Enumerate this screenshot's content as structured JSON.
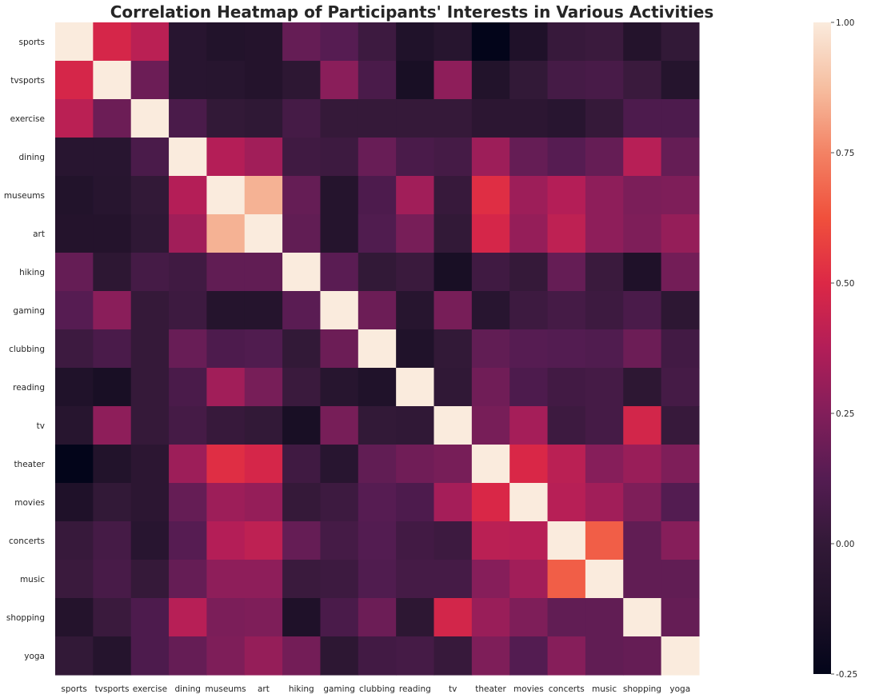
{
  "chart_data": {
    "type": "heatmap",
    "title": "Correlation Heatmap of Participants' Interests in Various Activities",
    "xlabel": "",
    "ylabel": "",
    "colormap": "rocket",
    "vmin": -0.25,
    "vmax": 1.0,
    "colorbar_ticks": [
      "-0.25",
      "0.00",
      "0.25",
      "0.50",
      "0.75",
      "1.00"
    ],
    "colorbar_tick_values": [
      -0.25,
      0.0,
      0.25,
      0.5,
      0.75,
      1.0
    ],
    "row_labels": [
      "sports",
      "tvsports",
      "exercise",
      "dining",
      "museums",
      "art",
      "hiking",
      "gaming",
      "clubbing",
      "reading",
      "tv",
      "theater",
      "movies",
      "concerts",
      "music",
      "shopping",
      "yoga"
    ],
    "col_labels": [
      "sports",
      "tvsports",
      "exercise",
      "dining",
      "museums",
      "art",
      "hiking",
      "gaming",
      "clubbing",
      "reading",
      "tv",
      "theater",
      "movies",
      "concerts",
      "music",
      "shopping",
      "yoga"
    ],
    "values": [
      [
        1.0,
        0.48,
        0.4,
        -0.06,
        -0.1,
        -0.09,
        0.17,
        0.13,
        0.04,
        -0.11,
        -0.07,
        -0.25,
        -0.12,
        0.02,
        0.03,
        -0.09,
        0.0
      ],
      [
        0.48,
        1.0,
        0.19,
        -0.06,
        -0.07,
        -0.09,
        -0.03,
        0.27,
        0.09,
        -0.15,
        0.28,
        -0.1,
        0.0,
        0.07,
        0.08,
        0.03,
        -0.08
      ],
      [
        0.4,
        0.19,
        1.0,
        0.09,
        0.0,
        -0.02,
        0.07,
        0.01,
        0.01,
        0.01,
        0.01,
        -0.04,
        -0.04,
        -0.06,
        0.01,
        0.1,
        0.1
      ],
      [
        -0.06,
        -0.06,
        0.09,
        1.0,
        0.38,
        0.33,
        0.05,
        0.04,
        0.18,
        0.09,
        0.07,
        0.32,
        0.17,
        0.13,
        0.17,
        0.39,
        0.17
      ],
      [
        -0.1,
        -0.07,
        0.0,
        0.38,
        1.0,
        0.85,
        0.17,
        -0.08,
        0.1,
        0.33,
        0.02,
        0.52,
        0.32,
        0.38,
        0.28,
        0.23,
        0.24
      ],
      [
        -0.09,
        -0.09,
        -0.02,
        0.33,
        0.85,
        1.0,
        0.16,
        -0.08,
        0.11,
        0.22,
        0.0,
        0.48,
        0.3,
        0.41,
        0.28,
        0.24,
        0.3
      ],
      [
        0.17,
        -0.03,
        0.07,
        0.05,
        0.16,
        0.16,
        1.0,
        0.14,
        0.0,
        0.03,
        -0.15,
        0.05,
        0.01,
        0.17,
        0.03,
        -0.12,
        0.21
      ],
      [
        0.13,
        0.27,
        0.01,
        0.04,
        -0.08,
        -0.08,
        0.14,
        1.0,
        0.19,
        -0.07,
        0.22,
        -0.06,
        0.04,
        0.07,
        0.04,
        0.09,
        -0.03
      ],
      [
        0.04,
        0.09,
        0.01,
        0.18,
        0.1,
        0.11,
        0.0,
        0.19,
        1.0,
        -0.11,
        0.0,
        0.16,
        0.13,
        0.12,
        0.11,
        0.19,
        0.06
      ],
      [
        -0.11,
        -0.15,
        0.01,
        0.09,
        0.33,
        0.22,
        0.03,
        -0.07,
        -0.11,
        1.0,
        -0.01,
        0.2,
        0.1,
        0.06,
        0.07,
        -0.03,
        0.07
      ],
      [
        -0.07,
        0.28,
        0.01,
        0.07,
        0.02,
        0.0,
        -0.15,
        0.22,
        0.0,
        -0.01,
        1.0,
        0.22,
        0.34,
        0.04,
        0.07,
        0.47,
        0.02
      ],
      [
        -0.25,
        -0.1,
        -0.04,
        0.32,
        0.52,
        0.48,
        0.05,
        -0.06,
        0.16,
        0.2,
        0.22,
        1.0,
        0.49,
        0.4,
        0.26,
        0.31,
        0.24
      ],
      [
        -0.12,
        0.0,
        -0.04,
        0.17,
        0.32,
        0.3,
        0.01,
        0.04,
        0.13,
        0.1,
        0.34,
        0.49,
        1.0,
        0.39,
        0.33,
        0.24,
        0.12
      ],
      [
        0.02,
        0.07,
        -0.06,
        0.13,
        0.38,
        0.41,
        0.17,
        0.07,
        0.12,
        0.06,
        0.04,
        0.4,
        0.39,
        1.0,
        0.66,
        0.16,
        0.26
      ],
      [
        0.03,
        0.08,
        0.01,
        0.17,
        0.28,
        0.28,
        0.03,
        0.04,
        0.11,
        0.07,
        0.07,
        0.26,
        0.33,
        0.66,
        1.0,
        0.16,
        0.16
      ],
      [
        -0.09,
        0.03,
        0.1,
        0.39,
        0.23,
        0.24,
        -0.12,
        0.09,
        0.19,
        -0.03,
        0.47,
        0.31,
        0.24,
        0.16,
        0.16,
        1.0,
        0.17
      ],
      [
        0.0,
        -0.08,
        0.1,
        0.17,
        0.24,
        0.3,
        0.21,
        -0.03,
        0.06,
        0.07,
        0.02,
        0.24,
        0.12,
        0.26,
        0.16,
        0.17,
        1.0
      ]
    ]
  }
}
